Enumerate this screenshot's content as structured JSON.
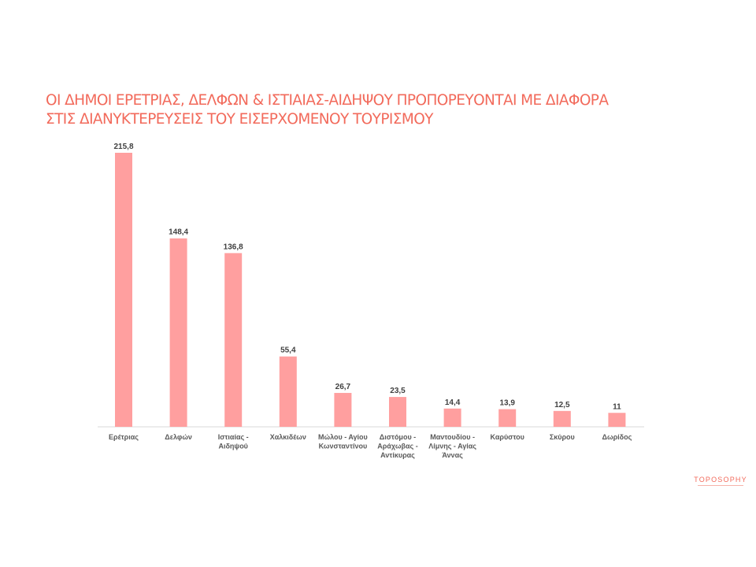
{
  "slide": {
    "title_lines": [
      "ΟΙ ΔΗΜΟΙ ΕΡΕΤΡΙΑΣ, ΔΕΛΦΩΝ & ΙΣΤΙΑΙΑΣ-ΑΙΔΗΨΟΥ ΠΡΟΠΟΡΕΥΟΝΤΑΙ ΜΕ ΔΙΑΦΟΡΑ",
      "ΣΤΙΣ ΔΙΑΝΥΚΤΕΡΕΥΣΕΙΣ ΤΟΥ ΕΙΣΕΡΧΟΜΕΝΟΥ ΤΟΥΡΙΣΜΟΥ"
    ],
    "logo_text": "TOPOSOPHY",
    "accent_color": "#f26a5b"
  },
  "chart_data": {
    "type": "bar",
    "title": "ΟΙ ΔΗΜΟΙ ΕΡΕΤΡΙΑΣ, ΔΕΛΦΩΝ & ΙΣΤΙΑΙΑΣ-ΑΙΔΗΨΟΥ ΠΡΟΠΟΡΕΥΟΝΤΑΙ ΜΕ ΔΙΑΦΟΡΑ ΣΤΙΣ ΔΙΑΝΥΚΤΕΡΕΥΣΕΙΣ ΤΟΥ ΕΙΣΕΡΧΟΜΕΝΟΥ ΤΟΥΡΙΣΜΟΥ",
    "categories": [
      [
        "Ερέτριας"
      ],
      [
        "Δελφών"
      ],
      [
        "Ιστιαίας -",
        "Αιδηψού"
      ],
      [
        "Χαλκιδέων"
      ],
      [
        "Μώλου - Αγίου",
        "Κωνσταντίνου"
      ],
      [
        "Διστόμου -",
        "Αράχωβας -",
        "Αντίκυρας"
      ],
      [
        "Μαντουδίου -",
        "Λίμνης - Αγίας",
        "Άννας"
      ],
      [
        "Καρύστου"
      ],
      [
        "Σκύρου"
      ],
      [
        "Δωρίδος"
      ]
    ],
    "values": [
      215.8,
      148.4,
      136.8,
      55.4,
      26.7,
      23.5,
      14.4,
      13.9,
      12.5,
      11
    ],
    "value_labels": [
      "215,8",
      "148,4",
      "136,8",
      "55,4",
      "26,7",
      "23,5",
      "14,4",
      "13,9",
      "12,5",
      "11"
    ],
    "xlabel": "",
    "ylabel": "",
    "ylim": [
      0,
      215.8
    ],
    "grid": false,
    "bar_color": "#ff9f9f",
    "axis_color": "#d9d9d9"
  }
}
